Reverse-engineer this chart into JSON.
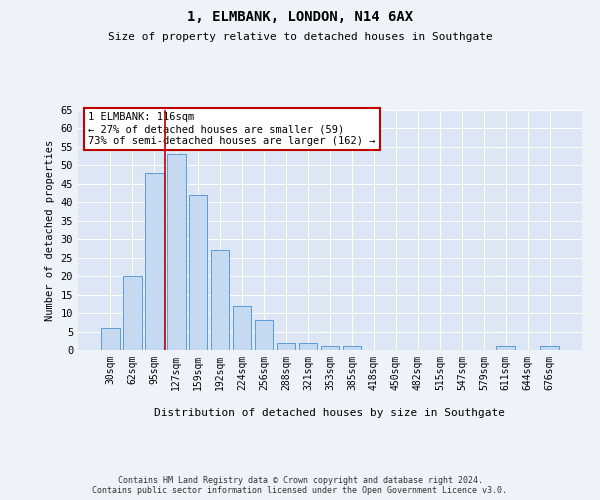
{
  "title": "1, ELMBANK, LONDON, N14 6AX",
  "subtitle": "Size of property relative to detached houses in Southgate",
  "xlabel": "Distribution of detached houses by size in Southgate",
  "ylabel": "Number of detached properties",
  "bar_color": "#c5d9f0",
  "bar_edge_color": "#5b9bd5",
  "annotation_line_color": "#c00000",
  "annotation_box_color": "#c00000",
  "property_label": "1 ELMBANK: 116sqm",
  "annotation_line1": "← 27% of detached houses are smaller (59)",
  "annotation_line2": "73% of semi-detached houses are larger (162) →",
  "categories": [
    "30sqm",
    "62sqm",
    "95sqm",
    "127sqm",
    "159sqm",
    "192sqm",
    "224sqm",
    "256sqm",
    "288sqm",
    "321sqm",
    "353sqm",
    "385sqm",
    "418sqm",
    "450sqm",
    "482sqm",
    "515sqm",
    "547sqm",
    "579sqm",
    "611sqm",
    "644sqm",
    "676sqm"
  ],
  "values": [
    6,
    20,
    48,
    53,
    42,
    27,
    12,
    8,
    2,
    2,
    1,
    1,
    0,
    0,
    0,
    0,
    0,
    0,
    1,
    0,
    1
  ],
  "ylim": [
    0,
    65
  ],
  "yticks": [
    0,
    5,
    10,
    15,
    20,
    25,
    30,
    35,
    40,
    45,
    50,
    55,
    60,
    65
  ],
  "vline_x": 2.5,
  "background_color": "#eef2f9",
  "plot_bg_color": "#dce6f5",
  "footer_line1": "Contains HM Land Registry data © Crown copyright and database right 2024.",
  "footer_line2": "Contains public sector information licensed under the Open Government Licence v3.0."
}
